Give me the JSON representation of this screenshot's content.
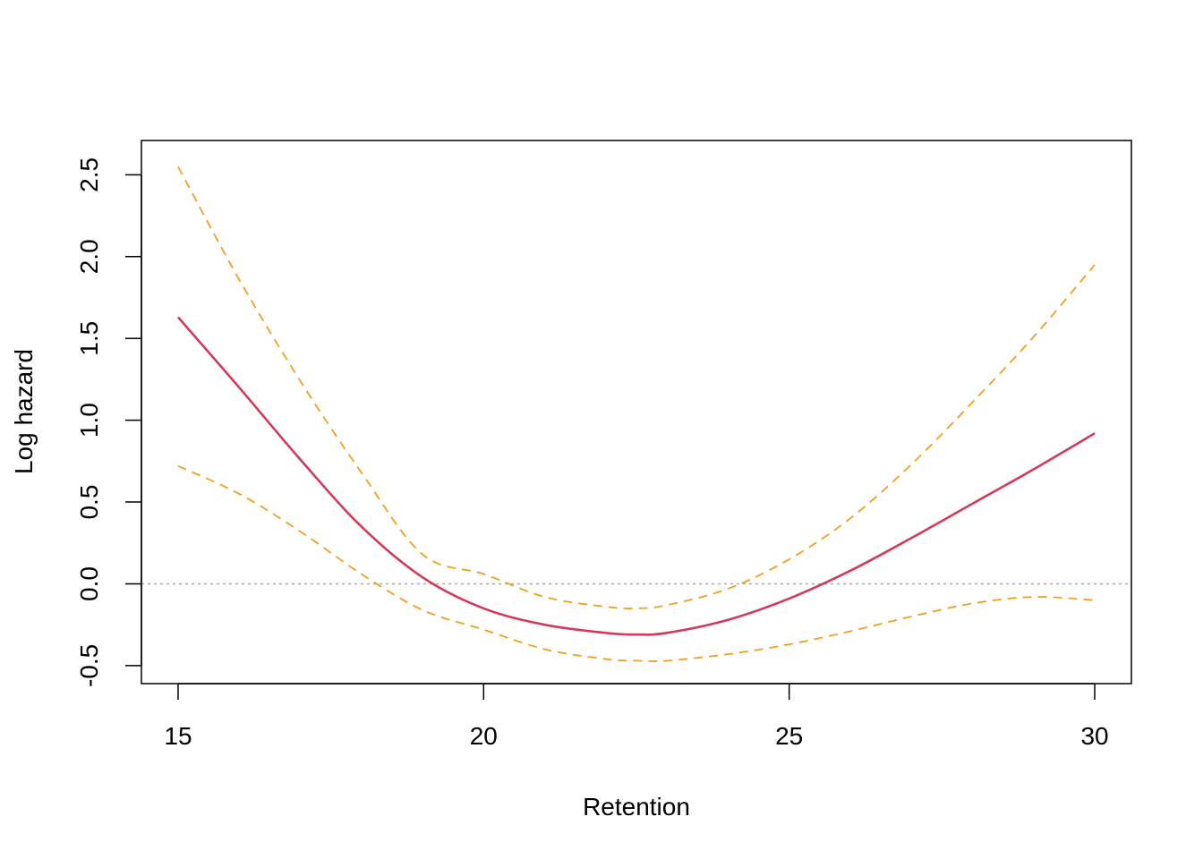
{
  "chart_data": {
    "type": "line",
    "xlabel": "Retention",
    "ylabel": "Log hazard",
    "xlim": [
      14.4,
      30.6
    ],
    "ylim": [
      -0.61,
      2.71
    ],
    "xticks": [
      15,
      20,
      25,
      30
    ],
    "yticks": [
      -0.5,
      0.0,
      0.5,
      1.0,
      1.5,
      2.0,
      2.5
    ],
    "xtick_labels": [
      "15",
      "20",
      "25",
      "30"
    ],
    "ytick_labels": [
      "-0.5",
      "0.0",
      "0.5",
      "1.0",
      "1.5",
      "2.0",
      "2.5"
    ],
    "reference_line": {
      "y": 0,
      "style": "dotted",
      "color": "#aaaaaa"
    },
    "grid": false,
    "x": [
      15,
      16,
      17,
      18,
      19,
      20,
      21,
      22,
      22.5,
      23,
      24,
      25,
      26,
      27,
      28,
      29,
      30
    ],
    "series": [
      {
        "role": "estimate",
        "color": "#d13a5c",
        "dash": "solid",
        "values": [
          1.63,
          1.2,
          0.76,
          0.35,
          0.04,
          -0.15,
          -0.25,
          -0.3,
          -0.31,
          -0.3,
          -0.22,
          -0.09,
          0.08,
          0.28,
          0.49,
          0.7,
          0.92
        ]
      },
      {
        "role": "upper",
        "color": "#f0a020",
        "dash": "dashed",
        "values": [
          2.55,
          1.86,
          1.24,
          0.68,
          0.18,
          0.06,
          -0.08,
          -0.14,
          -0.15,
          -0.13,
          -0.03,
          0.15,
          0.4,
          0.73,
          1.11,
          1.51,
          1.95
        ]
      },
      {
        "role": "lower",
        "color": "#f0a020",
        "dash": "dashed",
        "values": [
          0.72,
          0.55,
          0.32,
          0.06,
          -0.16,
          -0.28,
          -0.4,
          -0.46,
          -0.47,
          -0.47,
          -0.43,
          -0.37,
          -0.29,
          -0.2,
          -0.12,
          -0.08,
          -0.1
        ]
      }
    ]
  }
}
